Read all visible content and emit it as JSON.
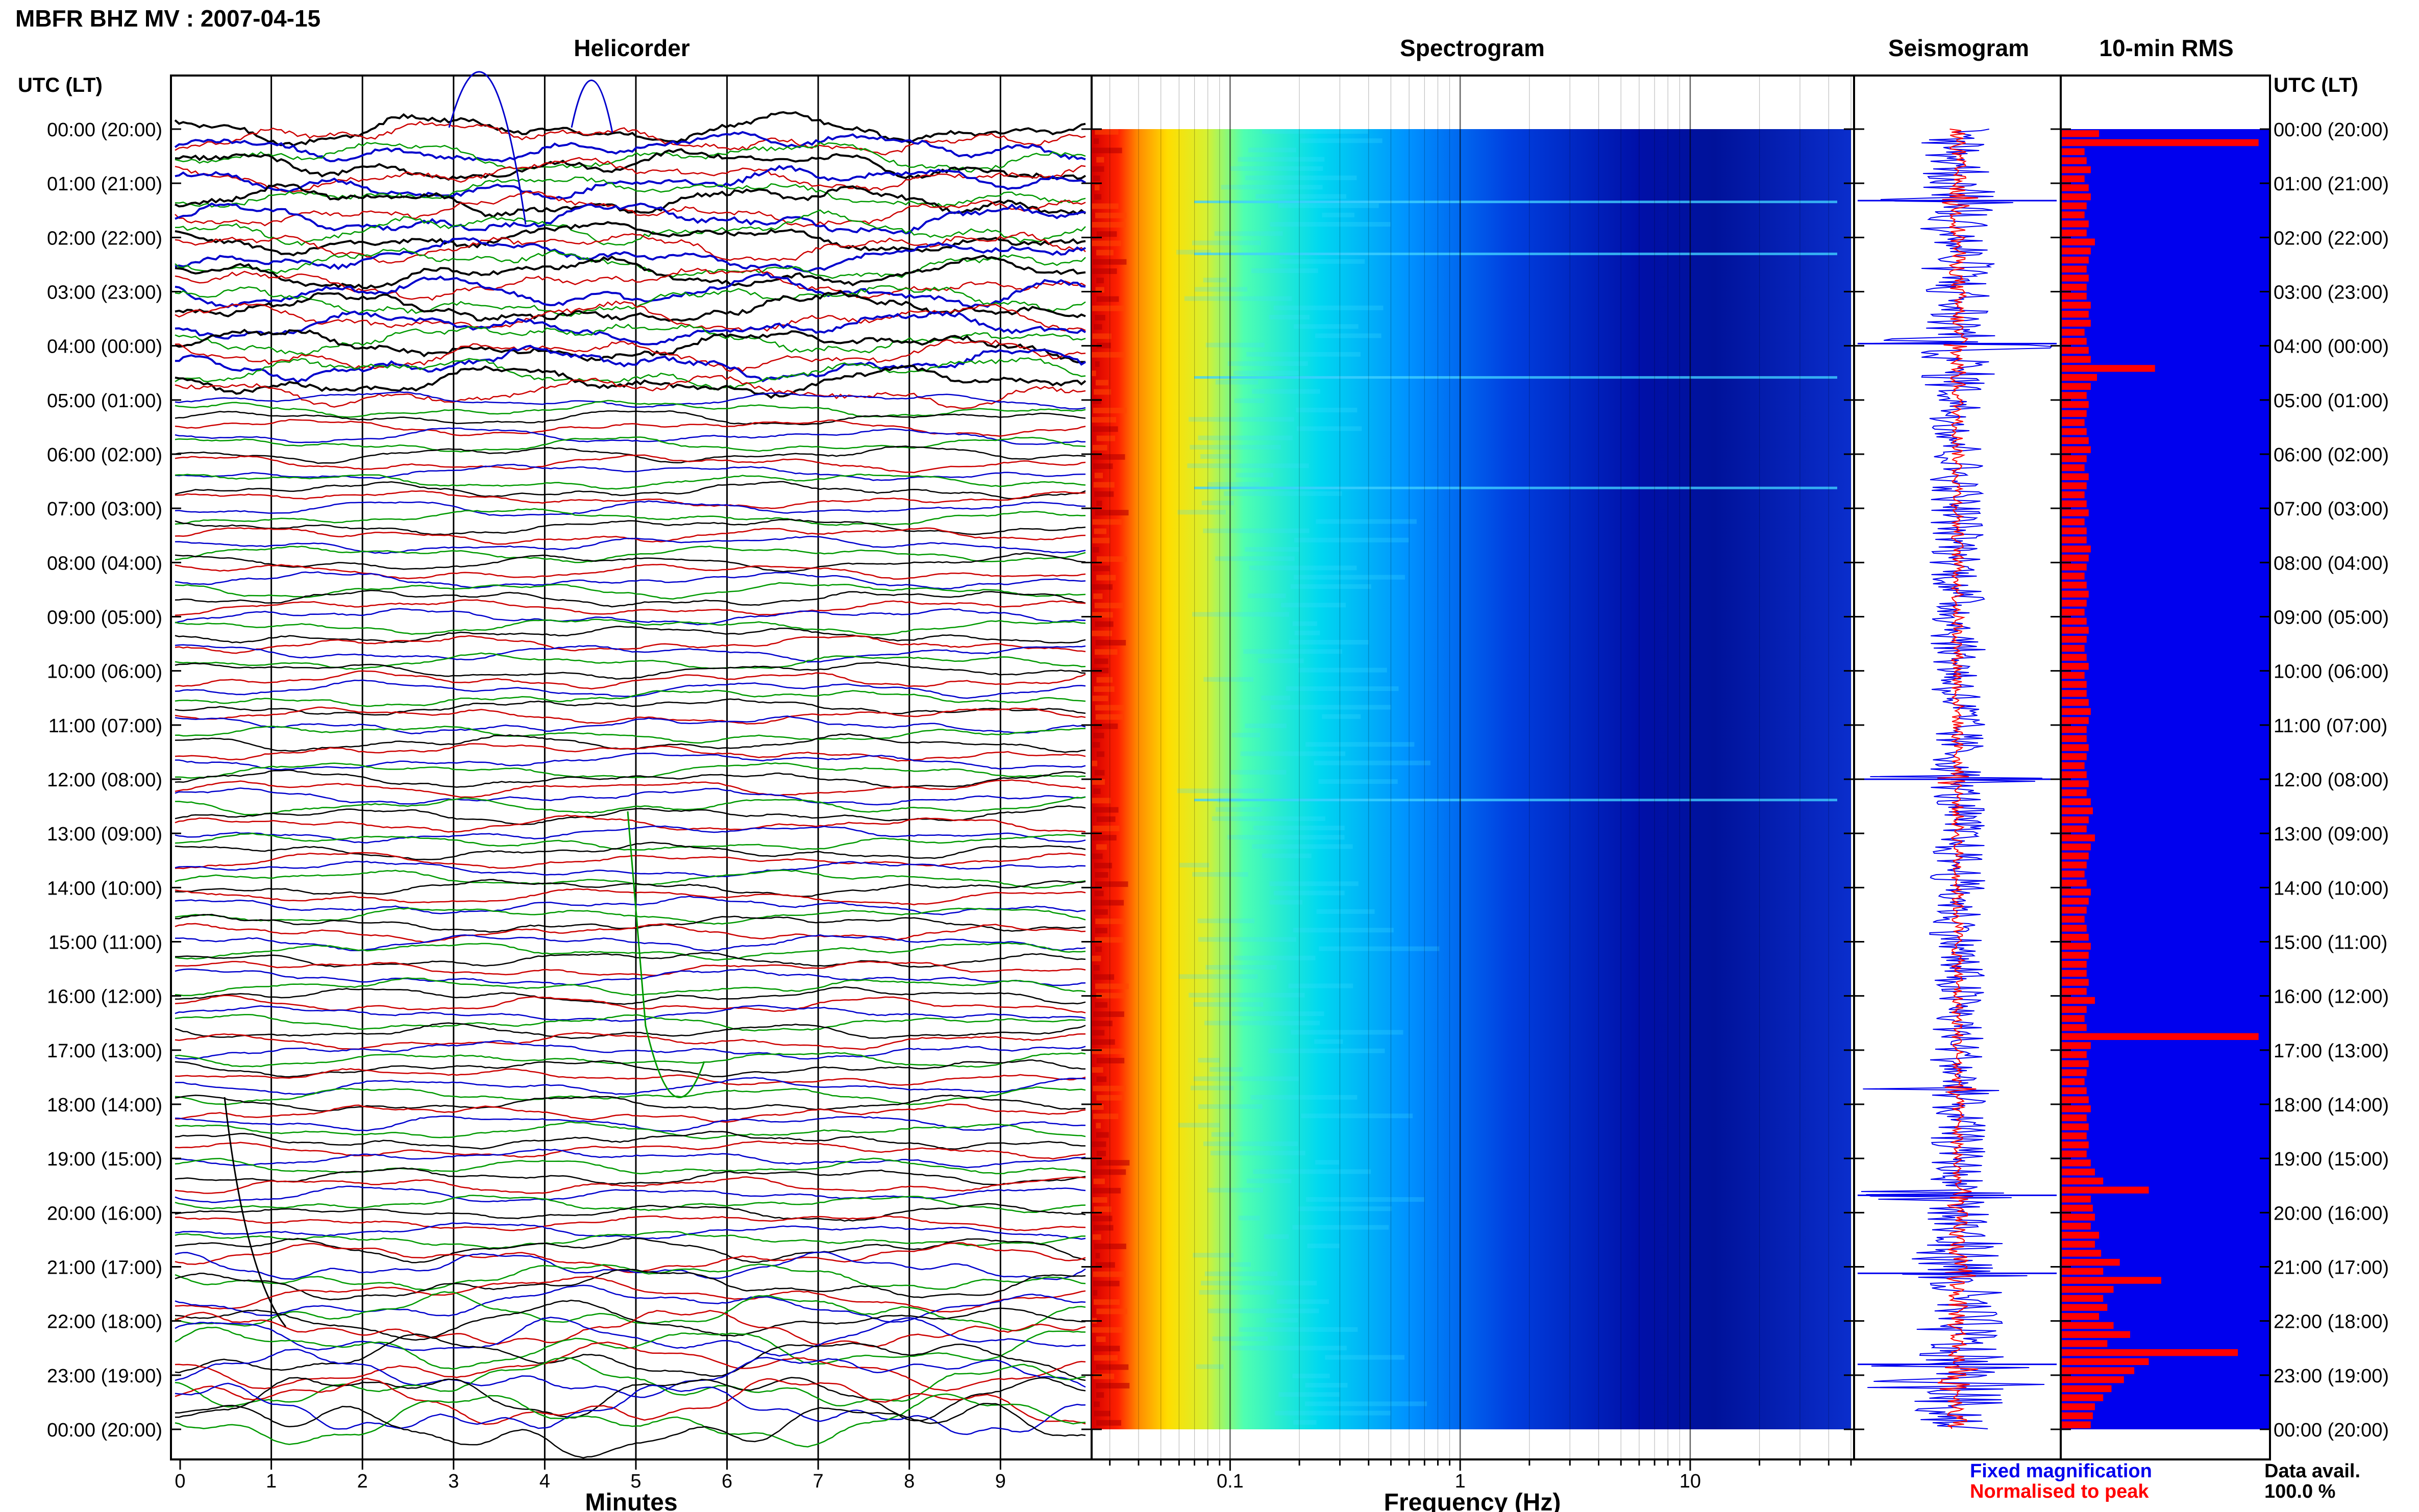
{
  "header": {
    "title": "MBFR BHZ MV : 2007-04-15"
  },
  "panels": {
    "helicorder": "Helicorder",
    "spectrogram": "Spectrogram",
    "seismogram": "Seismogram",
    "rms": "10-min RMS"
  },
  "axis": {
    "time_label": "UTC (LT)",
    "minutes_label": "Minutes",
    "frequency_label": "Frequency (Hz)"
  },
  "legend": {
    "fixed": "Fixed magnification",
    "normalised": "Normalised to peak",
    "avail_label": "Data avail.",
    "avail_value": "100.0 %"
  },
  "colors": {
    "trace_colors": [
      "#000000",
      "#cc0000",
      "#0000cc",
      "#009900"
    ],
    "seismo_fixed": "#0000ee",
    "seismo_norm": "#ff0000",
    "rms_bg": "#0000ee",
    "rms_bar": "#ff0000",
    "fixed_legend": "#0000ee",
    "normalised_legend": "#ff0000"
  },
  "chart_data": [
    {
      "type": "line",
      "title": "Helicorder",
      "xlabel": "Minutes",
      "xlim": [
        0,
        10
      ],
      "x_ticks": [
        "0",
        "1",
        "2",
        "3",
        "4",
        "5",
        "6",
        "7",
        "8",
        "9"
      ],
      "y_ticks": [
        "00:00 (20:00)",
        "01:00 (21:00)",
        "02:00 (22:00)",
        "03:00 (23:00)",
        "04:00 (00:00)",
        "05:00 (01:00)",
        "06:00 (02:00)",
        "07:00 (03:00)",
        "08:00 (04:00)",
        "09:00 (05:00)",
        "10:00 (06:00)",
        "11:00 (07:00)",
        "12:00 (08:00)",
        "13:00 (09:00)",
        "14:00 (10:00)",
        "15:00 (11:00)",
        "16:00 (12:00)",
        "17:00 (13:00)",
        "18:00 (14:00)",
        "19:00 (15:00)",
        "20:00 (16:00)",
        "21:00 (17:00)",
        "22:00 (18:00)",
        "23:00 (19:00)",
        "00:00 (20:00)"
      ],
      "ylabel": "UTC (LT)",
      "grid": true
    },
    {
      "type": "heatmap",
      "title": "Spectrogram",
      "xlabel": "Frequency (Hz)",
      "x_scale": "log",
      "xlim": [
        0.025,
        50
      ],
      "x_ticks": [
        "0.1",
        "1",
        "10"
      ]
    },
    {
      "type": "line",
      "title": "Seismogram",
      "series": [
        {
          "name": "Fixed magnification"
        },
        {
          "name": "Normalised to peak"
        }
      ]
    },
    {
      "type": "bar",
      "title": "10-min RMS",
      "orientation": "horizontal",
      "y_ticks": [
        "00:00 (20:00)",
        "01:00 (21:00)",
        "02:00 (22:00)",
        "03:00 (23:00)",
        "04:00 (00:00)",
        "05:00 (01:00)",
        "06:00 (02:00)",
        "07:00 (03:00)",
        "08:00 (04:00)",
        "09:00 (05:00)",
        "10:00 (06:00)",
        "11:00 (07:00)",
        "12:00 (08:00)",
        "13:00 (09:00)",
        "14:00 (10:00)",
        "15:00 (11:00)",
        "16:00 (12:00)",
        "17:00 (13:00)",
        "18:00 (14:00)",
        "19:00 (15:00)",
        "20:00 (16:00)",
        "21:00 (17:00)",
        "22:00 (18:00)",
        "23:00 (19:00)",
        "00:00 (20:00)"
      ],
      "values": [
        0.18,
        0.95,
        0.11,
        0.12,
        0.14,
        0.11,
        0.13,
        0.14,
        0.12,
        0.11,
        0.13,
        0.12,
        0.16,
        0.14,
        0.13,
        0.12,
        0.13,
        0.12,
        0.12,
        0.14,
        0.13,
        0.14,
        0.11,
        0.12,
        0.13,
        0.14,
        0.45,
        0.17,
        0.14,
        0.12,
        0.13,
        0.12,
        0.11,
        0.12,
        0.13,
        0.14,
        0.12,
        0.11,
        0.13,
        0.12,
        0.11,
        0.12,
        0.13,
        0.11,
        0.12,
        0.12,
        0.14,
        0.13,
        0.12,
        0.11,
        0.12,
        0.13,
        0.12,
        0.11,
        0.12,
        0.13,
        0.12,
        0.11,
        0.12,
        0.13,
        0.11,
        0.12,
        0.12,
        0.13,
        0.14,
        0.13,
        0.12,
        0.12,
        0.13,
        0.12,
        0.11,
        0.12,
        0.13,
        0.12,
        0.14,
        0.15,
        0.13,
        0.12,
        0.16,
        0.14,
        0.13,
        0.12,
        0.11,
        0.12,
        0.14,
        0.13,
        0.12,
        0.11,
        0.12,
        0.13,
        0.14,
        0.13,
        0.12,
        0.12,
        0.13,
        0.12,
        0.16,
        0.12,
        0.11,
        0.12,
        0.95,
        0.14,
        0.12,
        0.13,
        0.12,
        0.11,
        0.12,
        0.13,
        0.14,
        0.12,
        0.13,
        0.12,
        0.13,
        0.12,
        0.14,
        0.16,
        0.2,
        0.42,
        0.14,
        0.15,
        0.16,
        0.14,
        0.18,
        0.16,
        0.19,
        0.28,
        0.2,
        0.48,
        0.25,
        0.2,
        0.22,
        0.18,
        0.25,
        0.33,
        0.22,
        0.85,
        0.42,
        0.35,
        0.3,
        0.24,
        0.2,
        0.16,
        0.15,
        0.14
      ]
    }
  ]
}
